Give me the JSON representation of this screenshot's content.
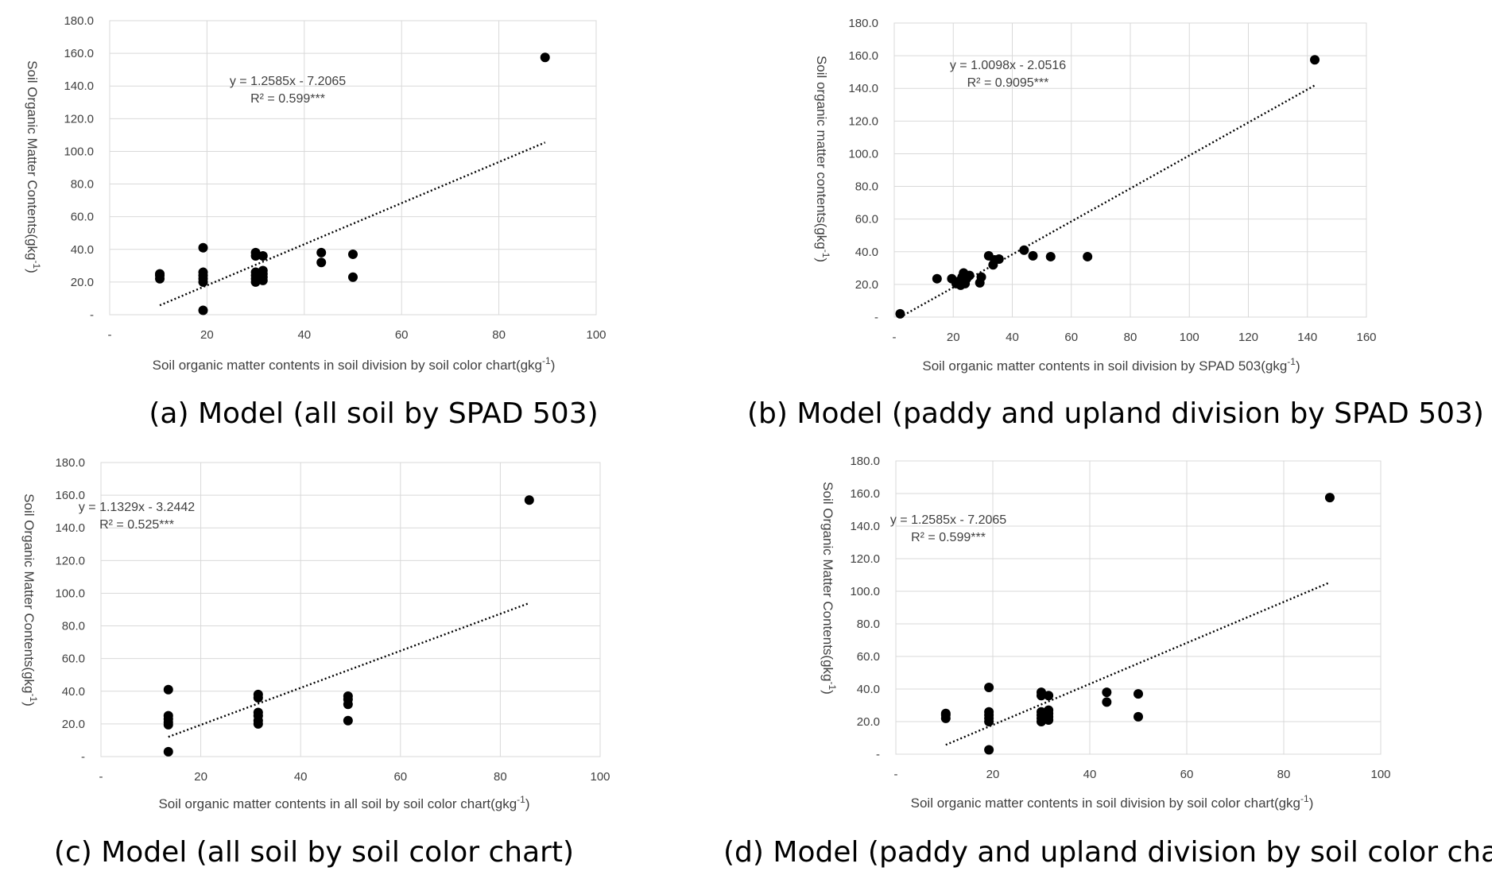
{
  "chart_data": [
    {
      "id": "a",
      "type": "scatter",
      "caption": "(a) Model (all soil by SPAD 503)",
      "xlabel": "Soil organic matter contents  in  soil division by soil color chart(gkg",
      "xlabel_sup": "-1",
      "xlabel_end": ")",
      "ylabel": "Soil Organic Matter Contents(gkg",
      "ylabel_sup": "-1",
      "ylabel_end": ")",
      "xlim": [
        0,
        100
      ],
      "ylim": [
        0,
        180
      ],
      "x_ticks": [
        "-",
        "20",
        "40",
        "60",
        "80",
        "100"
      ],
      "y_ticks": [
        "-",
        "20.0",
        "40.0",
        "60.0",
        "80.0",
        "100.0",
        "120.0",
        "140.0",
        "160.0",
        "180.0"
      ],
      "equation": "y = 1.2585x - 7.2065",
      "r2": "R² = 0.599***",
      "trendline": {
        "slope": 1.2585,
        "intercept": -7.2065,
        "x_range": [
          10.3,
          89.5
        ]
      },
      "points": [
        [
          10.3,
          22
        ],
        [
          10.3,
          24
        ],
        [
          10.3,
          25
        ],
        [
          19.2,
          2.7
        ],
        [
          19.2,
          20
        ],
        [
          19.2,
          22
        ],
        [
          19.2,
          24
        ],
        [
          19.2,
          26
        ],
        [
          19.2,
          41
        ],
        [
          30,
          20
        ],
        [
          30,
          22
        ],
        [
          30,
          24
        ],
        [
          30,
          26
        ],
        [
          30,
          36
        ],
        [
          30,
          38
        ],
        [
          31.5,
          21
        ],
        [
          31.5,
          23
        ],
        [
          31.5,
          25
        ],
        [
          31.5,
          27
        ],
        [
          31.5,
          36
        ],
        [
          43.5,
          32
        ],
        [
          43.5,
          38
        ],
        [
          50,
          23
        ],
        [
          50,
          37
        ],
        [
          89.5,
          157.5
        ]
      ]
    },
    {
      "id": "b",
      "type": "scatter",
      "caption": "(b) Model (paddy and upland division by SPAD 503)",
      "xlabel": "Soil organic matter contents in soil division by SPAD 503(gkg",
      "xlabel_sup": "-1",
      "xlabel_end": ")",
      "ylabel": "Soil organic matter contents(gkg",
      "ylabel_sup": "-1",
      "ylabel_end": ")",
      "xlim": [
        0,
        160
      ],
      "ylim": [
        0,
        180
      ],
      "x_ticks": [
        "-",
        "20",
        "40",
        "60",
        "80",
        "100",
        "120",
        "140",
        "160"
      ],
      "y_ticks": [
        "-",
        "20.0",
        "40.0",
        "60.0",
        "80.0",
        "100.0",
        "120.0",
        "140.0",
        "160.0",
        "180.0"
      ],
      "equation": "y = 1.0098x - 2.0516",
      "r2": "R² = 0.9095***",
      "trendline": {
        "slope": 1.0098,
        "intercept": -2.0516,
        "x_range": [
          2,
          142.5
        ]
      },
      "points": [
        [
          2,
          2
        ],
        [
          14.5,
          23.5
        ],
        [
          19.5,
          23.5
        ],
        [
          21,
          20.5
        ],
        [
          22,
          22
        ],
        [
          22.5,
          19.5
        ],
        [
          23,
          24.5
        ],
        [
          23.5,
          27
        ],
        [
          24,
          20.5
        ],
        [
          24.5,
          23.5
        ],
        [
          25.5,
          25.5
        ],
        [
          29,
          21
        ],
        [
          29.5,
          24.5
        ],
        [
          32,
          37.5
        ],
        [
          33.5,
          32
        ],
        [
          34,
          35
        ],
        [
          35.5,
          35.5
        ],
        [
          44,
          41
        ],
        [
          47,
          37.5
        ],
        [
          53,
          37
        ],
        [
          65.5,
          37
        ],
        [
          142.5,
          157.5
        ]
      ]
    },
    {
      "id": "c",
      "type": "scatter",
      "caption": "(c) Model (all soil by soil color chart)",
      "xlabel": "Soil organic matter contents  in all soil by soil color chart(gkg",
      "xlabel_sup": "-1",
      "xlabel_end": ")",
      "ylabel": "Soil Organic Matter Contents(gkg",
      "ylabel_sup": "-1",
      "ylabel_end": ")",
      "xlim": [
        0,
        100
      ],
      "ylim": [
        0,
        180
      ],
      "x_ticks": [
        "-",
        "20",
        "40",
        "60",
        "80",
        "100"
      ],
      "y_ticks": [
        "-",
        "20.0",
        "40.0",
        "60.0",
        "80.0",
        "100.0",
        "120.0",
        "140.0",
        "160.0",
        "180.0"
      ],
      "equation": "y = 1.1329x - 3.2442",
      "r2": "R² = 0.525***",
      "trendline": {
        "slope": 1.1329,
        "intercept": -3.2442,
        "x_range": [
          13.5,
          85.8
        ]
      },
      "points": [
        [
          13.5,
          3
        ],
        [
          13.5,
          19.5
        ],
        [
          13.5,
          21
        ],
        [
          13.5,
          23
        ],
        [
          13.5,
          25
        ],
        [
          13.5,
          41
        ],
        [
          31.5,
          20
        ],
        [
          31.5,
          22
        ],
        [
          31.5,
          25
        ],
        [
          31.5,
          27
        ],
        [
          31.5,
          36
        ],
        [
          31.5,
          38
        ],
        [
          49.5,
          22
        ],
        [
          49.5,
          32
        ],
        [
          49.5,
          35
        ],
        [
          49.5,
          37
        ],
        [
          85.8,
          157
        ]
      ]
    },
    {
      "id": "d",
      "type": "scatter",
      "caption": "(d) Model (paddy and upland division by soil color chart)",
      "xlabel": "Soil organic matter contents  in  soil division by soil color chart(gkg",
      "xlabel_sup": "-1",
      "xlabel_end": ")",
      "ylabel": "Soil Organic Matter Contents(gkg",
      "ylabel_sup": "-1",
      "ylabel_end": ")",
      "xlim": [
        0,
        100
      ],
      "ylim": [
        0,
        180
      ],
      "x_ticks": [
        "-",
        "20",
        "40",
        "60",
        "80",
        "100"
      ],
      "y_ticks": [
        "-",
        "20.0",
        "40.0",
        "60.0",
        "80.0",
        "100.0",
        "120.0",
        "140.0",
        "160.0",
        "180.0"
      ],
      "equation": "y = 1.2585x - 7.2065",
      "r2": "R² = 0.599***",
      "trendline": {
        "slope": 1.2585,
        "intercept": -7.2065,
        "x_range": [
          10.3,
          89.5
        ]
      },
      "points": [
        [
          10.3,
          22
        ],
        [
          10.3,
          24
        ],
        [
          10.3,
          25
        ],
        [
          19.2,
          2.7
        ],
        [
          19.2,
          20
        ],
        [
          19.2,
          22
        ],
        [
          19.2,
          24
        ],
        [
          19.2,
          26
        ],
        [
          19.2,
          41
        ],
        [
          30,
          20
        ],
        [
          30,
          22
        ],
        [
          30,
          24
        ],
        [
          30,
          26
        ],
        [
          30,
          36
        ],
        [
          30,
          38
        ],
        [
          31.5,
          21
        ],
        [
          31.5,
          23
        ],
        [
          31.5,
          25
        ],
        [
          31.5,
          27
        ],
        [
          31.5,
          36
        ],
        [
          43.5,
          32
        ],
        [
          43.5,
          38
        ],
        [
          50,
          23
        ],
        [
          50,
          37
        ],
        [
          89.5,
          157.5
        ]
      ]
    }
  ]
}
